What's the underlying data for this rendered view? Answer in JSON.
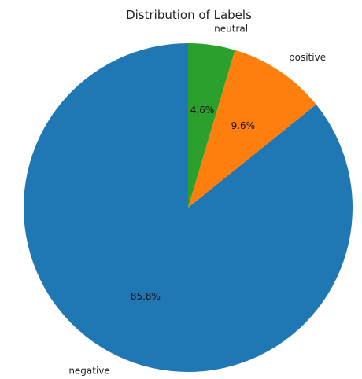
{
  "chart_data": {
    "type": "pie",
    "title": "Distribution of Labels",
    "categories": [
      "negative",
      "positive",
      "neutral"
    ],
    "values": [
      85.8,
      9.6,
      4.6
    ],
    "percent_labels": [
      "85.8%",
      "9.6%",
      "4.6%"
    ],
    "colors": [
      "#1f77b4",
      "#ff7f0e",
      "#2ca02c"
    ],
    "start_angle_deg": 90,
    "direction": "counterclockwise",
    "legend": "none"
  }
}
